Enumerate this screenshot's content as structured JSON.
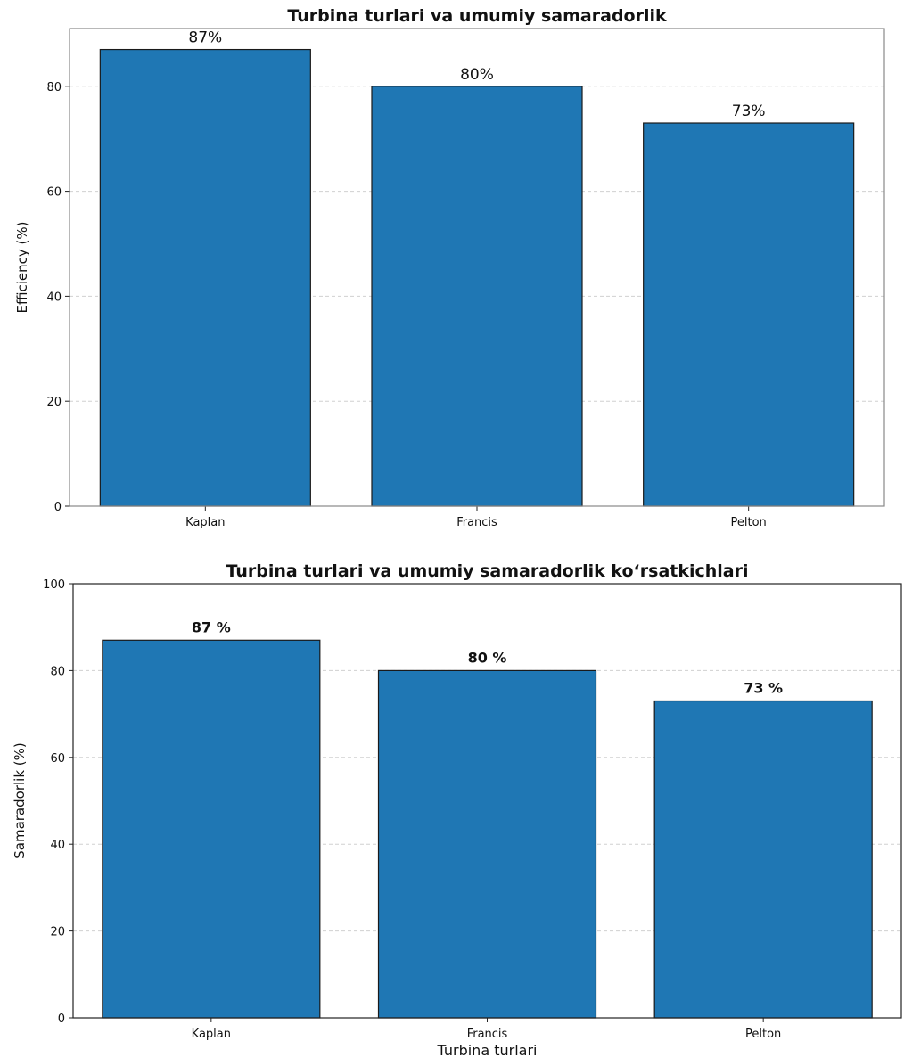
{
  "chart_data": [
    {
      "type": "bar",
      "title": "Turbina turlari va umumiy samaradorlik",
      "xlabel": "",
      "ylabel": "Efficiency (%)",
      "categories": [
        "Kaplan",
        "Francis",
        "Pelton"
      ],
      "values": [
        87,
        80,
        73
      ],
      "data_labels": [
        "87%",
        "80%",
        "73%"
      ],
      "ylim": [
        0,
        91
      ],
      "yticks": [
        0,
        20,
        40,
        60,
        80
      ],
      "grid": "horizontal dashed",
      "bar_color": "#1f77b4"
    },
    {
      "type": "bar",
      "title": "Turbina turlari va umumiy samaradorlik ko‘rsatkichlari",
      "xlabel": "Turbina turlari",
      "ylabel": "Samaradorlik (%)",
      "categories": [
        "Kaplan",
        "Francis",
        "Pelton"
      ],
      "values": [
        87,
        80,
        73
      ],
      "data_labels": [
        "87 %",
        "80 %",
        "73 %"
      ],
      "ylim": [
        0,
        100
      ],
      "yticks": [
        0,
        20,
        40,
        60,
        80,
        100
      ],
      "grid": "horizontal dashed",
      "bar_color": "#1f77b4"
    }
  ]
}
